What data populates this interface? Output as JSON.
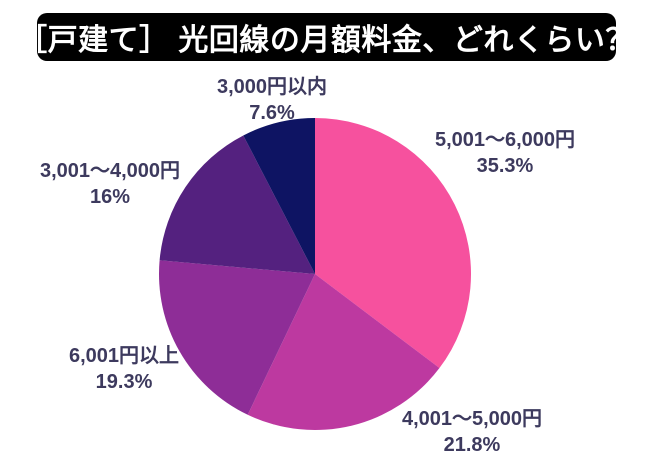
{
  "header": {
    "title": "［戸建て］ 光回線の月額料金、どれくらい？"
  },
  "colors": {
    "banner_bg": "#000000",
    "banner_text": "#ffffff",
    "label_text": "#3d3a5e",
    "background": "#ffffff"
  },
  "chart_data": {
    "type": "pie",
    "title": "［戸建て］ 光回線の月額料金、どれくらい？",
    "unit": "%",
    "start_angle_deg": 0,
    "direction": "clockwise",
    "legend_position": "outside-labels",
    "slices": [
      {
        "label": "5,001〜6,000円",
        "value": 35.3,
        "pct_label": "35.3%",
        "color": "#f6519e"
      },
      {
        "label": "4,001〜5,000円",
        "value": 21.8,
        "pct_label": "21.8%",
        "color": "#bd39a0"
      },
      {
        "label": "6,001円以上",
        "value": 19.3,
        "pct_label": "19.3%",
        "color": "#8e2d97"
      },
      {
        "label": "3,001〜4,000円",
        "value": 16,
        "pct_label": "16%",
        "color": "#54217f"
      },
      {
        "label": "3,000円以内",
        "value": 7.6,
        "pct_label": "7.6%",
        "color": "#0e1463"
      }
    ]
  }
}
